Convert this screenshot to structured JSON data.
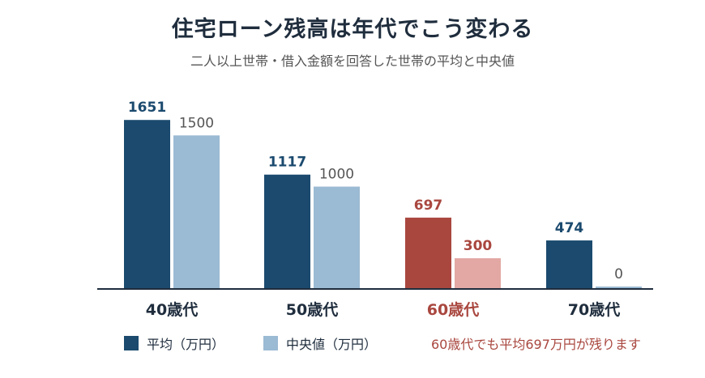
{
  "header": {
    "title": "住宅ローン残高は年代でこう変わる",
    "subtitle": "二人以上世帯・借入金額を回答した世帯の平均と中央値"
  },
  "colors": {
    "avg": "#1b4a6e",
    "median": "#9bbad3",
    "highlight_avg": "#a9473f",
    "highlight_median": "#e3a8a3",
    "axis": "#1f2d3d"
  },
  "chart_data": {
    "type": "bar",
    "categories": [
      "40歳代",
      "50歳代",
      "60歳代",
      "70歳代"
    ],
    "series": [
      {
        "name": "平均（万円）",
        "values": [
          1651,
          1117,
          697,
          474
        ]
      },
      {
        "name": "中央値（万円）",
        "values": [
          1500,
          1000,
          300,
          0
        ]
      }
    ],
    "highlight_category": "60歳代",
    "ylim": [
      0,
      1700
    ],
    "grid": false,
    "legend": "bottom-left",
    "annotation": "60歳代でも平均697万円が残ります"
  }
}
